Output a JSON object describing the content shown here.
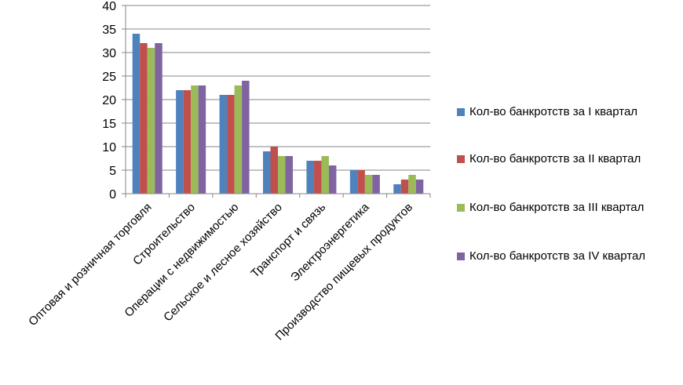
{
  "chart_data": {
    "type": "bar",
    "categories": [
      "Оптовая и розничная торговля",
      "Строительство",
      "Операции с недвижимостью",
      "Сельское и лесное хозяйство",
      "Транспорт и связь",
      "Электроэнергетика",
      "Производство пищевых продуктов"
    ],
    "series": [
      {
        "name": "Кол-во банкротств за I квартал",
        "color": "#4F81BD",
        "values": [
          34,
          22,
          21,
          9,
          7,
          5,
          2
        ]
      },
      {
        "name": "Кол-во банкротств за II квартал",
        "color": "#C0504D",
        "values": [
          32,
          22,
          21,
          10,
          7,
          5,
          3
        ]
      },
      {
        "name": "Кол-во банкротств за III квартал",
        "color": "#9BBB59",
        "values": [
          31,
          23,
          23,
          8,
          8,
          4,
          4
        ]
      },
      {
        "name": "Кол-во банкротств за IV квартал",
        "color": "#8064A2",
        "values": [
          32,
          23,
          24,
          8,
          6,
          4,
          3
        ]
      }
    ],
    "ylim": [
      0,
      40
    ],
    "yticks": [
      0,
      5,
      10,
      15,
      20,
      25,
      30,
      35,
      40
    ],
    "grid": true,
    "legend_position": "right"
  }
}
